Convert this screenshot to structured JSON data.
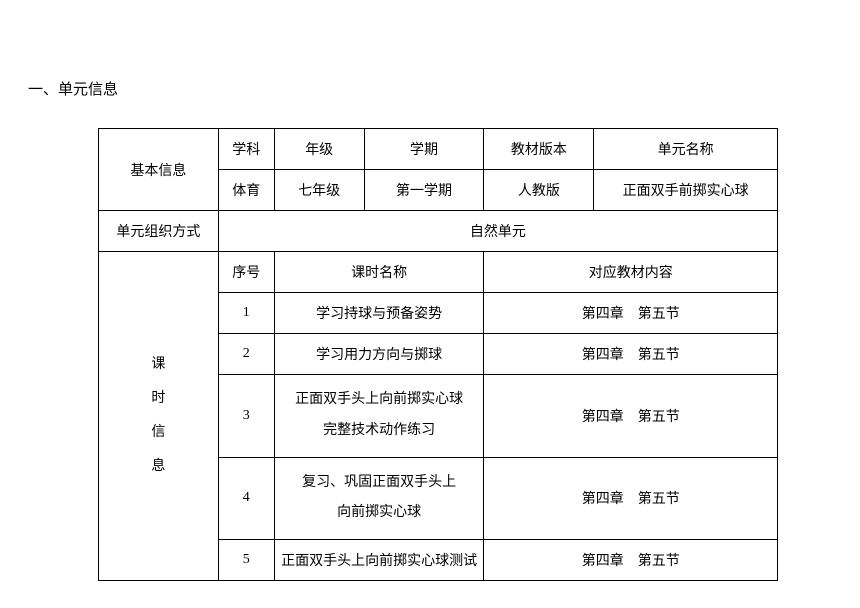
{
  "heading": "一、单元信息",
  "basicInfo": {
    "label": "基本信息",
    "headers": {
      "subject": "学科",
      "grade": "年级",
      "semester": "学期",
      "textbookVersion": "教材版本",
      "unitName": "单元名称"
    },
    "values": {
      "subject": "体育",
      "grade": "七年级",
      "semester": "第一学期",
      "textbookVersion": "人教版",
      "unitName": "正面双手前掷实心球"
    }
  },
  "unitOrg": {
    "label": "单元组织方式",
    "value": "自然单元"
  },
  "lessonInfo": {
    "label_line1": "课",
    "label_line2": "时",
    "label_line3": "信",
    "label_line4": "息",
    "headers": {
      "seq": "序号",
      "lessonName": "课时名称",
      "textbookContent": "对应教材内容"
    },
    "rows": [
      {
        "seq": "1",
        "lessonName": "学习持球与预备姿势",
        "textbookContent": "第四章　第五节"
      },
      {
        "seq": "2",
        "lessonName": "学习用力方向与掷球",
        "textbookContent": "第四章　第五节"
      },
      {
        "seq": "3",
        "lessonName_line1": "正面双手头上向前掷实心球",
        "lessonName_line2": "完整技术动作练习",
        "textbookContent": "第四章　第五节"
      },
      {
        "seq": "4",
        "lessonName_line1": "复习、巩固正面双手头上",
        "lessonName_line2": "向前掷实心球",
        "textbookContent": "第四章　第五节"
      },
      {
        "seq": "5",
        "lessonName": "正面双手头上向前掷实心球测试",
        "textbookContent": "第四章　第五节"
      }
    ]
  }
}
